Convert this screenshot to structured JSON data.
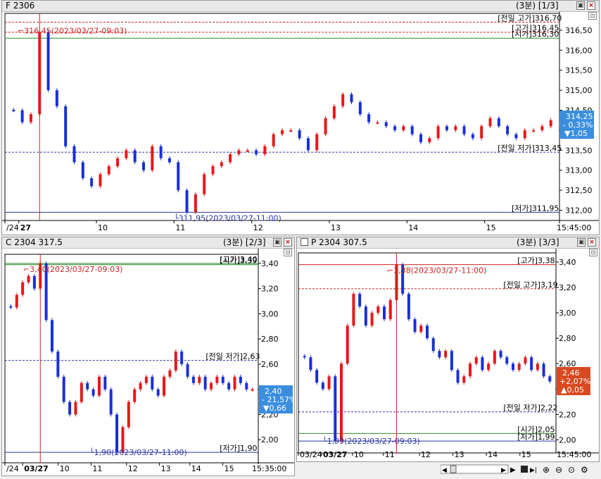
{
  "panels": [
    {
      "title": "F 2306",
      "meta": "(3분)  [1/3]",
      "y_ticks": [
        "316,50",
        "316,00",
        "315,50",
        "315,00",
        "314,50",
        "314,00",
        "313,50",
        "313,00",
        "312,50",
        "312,00"
      ],
      "x_ticks": [
        "/24",
        "27",
        "10",
        "11",
        "12",
        "13",
        "14",
        "15",
        "15:45:00"
      ],
      "lines": [
        {
          "label": "[전일 고가]316,70",
          "value": 316.7
        },
        {
          "label": "[고가]316,45",
          "value": 316.45
        },
        {
          "label": "[시가]316,30",
          "value": 316.3
        },
        {
          "label": "[전일 저가]313,45",
          "value": 313.45
        },
        {
          "label": "[저가]311,95",
          "value": 311.95
        }
      ],
      "high_annot": "316,45(2023/03/27-09:03)",
      "low_annot": "311,95(2023/03/27-11:00)",
      "badge": {
        "price": "314,25",
        "pct": "- 0,33%",
        "chg": "▼1,05"
      }
    },
    {
      "title": "C 2304 317.5",
      "meta": "(3분)  [2/3]",
      "y_ticks": [
        "3,40",
        "3,20",
        "3,00",
        "2,80",
        "2,60",
        "2,40",
        "2,20",
        "2,00"
      ],
      "x_ticks": [
        "/24",
        "03/27",
        "10",
        "11",
        "12",
        "13",
        "14",
        "15",
        "15:35:00"
      ],
      "lines": [
        {
          "label": "[고가]3,40",
          "value": 3.4
        },
        {
          "label": "[시가]3,39",
          "value": 3.39
        },
        {
          "label": "[전일 저가]2,63",
          "value": 2.63
        },
        {
          "label": "[저가]1,90",
          "value": 1.9
        }
      ],
      "high_annot": "3,40(2023/03/27-09:03)",
      "low_annot": "1,90(2023/03/27-11:00)",
      "badge": {
        "price": "2,40",
        "pct": "- 21,57%",
        "chg": "▼0,66"
      }
    },
    {
      "title": "P 2304 307.5",
      "meta": "(3분)  [3/3]",
      "y_ticks": [
        "3,40",
        "3,20",
        "3,00",
        "2,80",
        "2,60",
        "2,40",
        "2,20",
        "2,00"
      ],
      "x_ticks": [
        "03/24",
        "03/27",
        "10",
        "11",
        "12",
        "13",
        "14",
        "15",
        "15:45:00"
      ],
      "lines": [
        {
          "label": "[고가]3,38",
          "value": 3.38
        },
        {
          "label": "[전일 고가]3,19",
          "value": 3.19
        },
        {
          "label": "[전일 저가]2,22",
          "value": 2.22
        },
        {
          "label": "[시가]2,05",
          "value": 2.05
        },
        {
          "label": "[저가]1,99",
          "value": 1.99
        }
      ],
      "high_annot": "3,38(2023/03/27-11:00)",
      "low_annot": "1,99(2023/03/27-09:03)",
      "badge": {
        "price": "2,46",
        "pct": "+2,07%",
        "chg": "▲0,05"
      }
    }
  ],
  "chart_data": [
    {
      "type": "candlestick",
      "title": "F 2306",
      "ylim": [
        311.95,
        316.7
      ],
      "price_path": [
        314.5,
        314.2,
        314.4,
        316.45,
        315.0,
        314.6,
        313.6,
        313.2,
        312.8,
        312.6,
        312.9,
        313.1,
        313.3,
        313.5,
        313.2,
        313.0,
        313.6,
        313.3,
        313.2,
        312.5,
        311.95,
        312.4,
        312.9,
        313.1,
        313.2,
        313.4,
        313.5,
        313.5,
        313.4,
        313.6,
        313.9,
        314.0,
        314.0,
        313.8,
        313.5,
        313.9,
        314.3,
        314.6,
        314.9,
        314.7,
        314.4,
        314.2,
        314.2,
        314.1,
        314.0,
        314.1,
        313.9,
        313.7,
        313.8,
        314.1,
        314.0,
        314.1,
        313.9,
        313.8,
        314.1,
        314.3,
        314.1,
        313.9,
        313.8,
        314.0,
        314.0,
        314.1,
        314.25
      ]
    },
    {
      "type": "candlestick",
      "title": "C 2304 317.5",
      "ylim": [
        1.9,
        3.4
      ],
      "price_path": [
        3.05,
        3.15,
        3.25,
        3.3,
        3.2,
        3.4,
        2.95,
        2.7,
        2.5,
        2.3,
        2.2,
        2.3,
        2.45,
        2.4,
        2.35,
        2.5,
        2.4,
        2.2,
        1.9,
        2.1,
        2.3,
        2.4,
        2.45,
        2.5,
        2.4,
        2.35,
        2.5,
        2.55,
        2.7,
        2.6,
        2.5,
        2.45,
        2.5,
        2.4,
        2.45,
        2.5,
        2.45,
        2.4,
        2.5,
        2.45,
        2.4,
        2.4
      ]
    },
    {
      "type": "candlestick",
      "title": "P 2304 307.5",
      "ylim": [
        1.99,
        3.4
      ],
      "price_path": [
        2.65,
        2.55,
        2.45,
        2.4,
        2.5,
        1.99,
        2.6,
        2.9,
        3.15,
        3.05,
        2.9,
        3.0,
        3.05,
        2.95,
        3.1,
        3.38,
        3.15,
        2.95,
        2.85,
        2.9,
        2.8,
        2.7,
        2.65,
        2.7,
        2.55,
        2.45,
        2.5,
        2.6,
        2.65,
        2.55,
        2.6,
        2.7,
        2.65,
        2.6,
        2.55,
        2.6,
        2.65,
        2.55,
        2.6,
        2.5,
        2.46
      ]
    }
  ],
  "colors": {
    "up": "#e8171a",
    "down": "#1a2fd6",
    "high_line": "#cc2222",
    "low_line": "#2a36a0",
    "open_line": "#2a8a2a",
    "badge_down": "#3a8ee0",
    "badge_up": "#d84a20"
  },
  "toolbar": {
    "icons": [
      "zoom-in-icon",
      "zoom-out-icon",
      "search-icon",
      "settings-icon"
    ]
  }
}
